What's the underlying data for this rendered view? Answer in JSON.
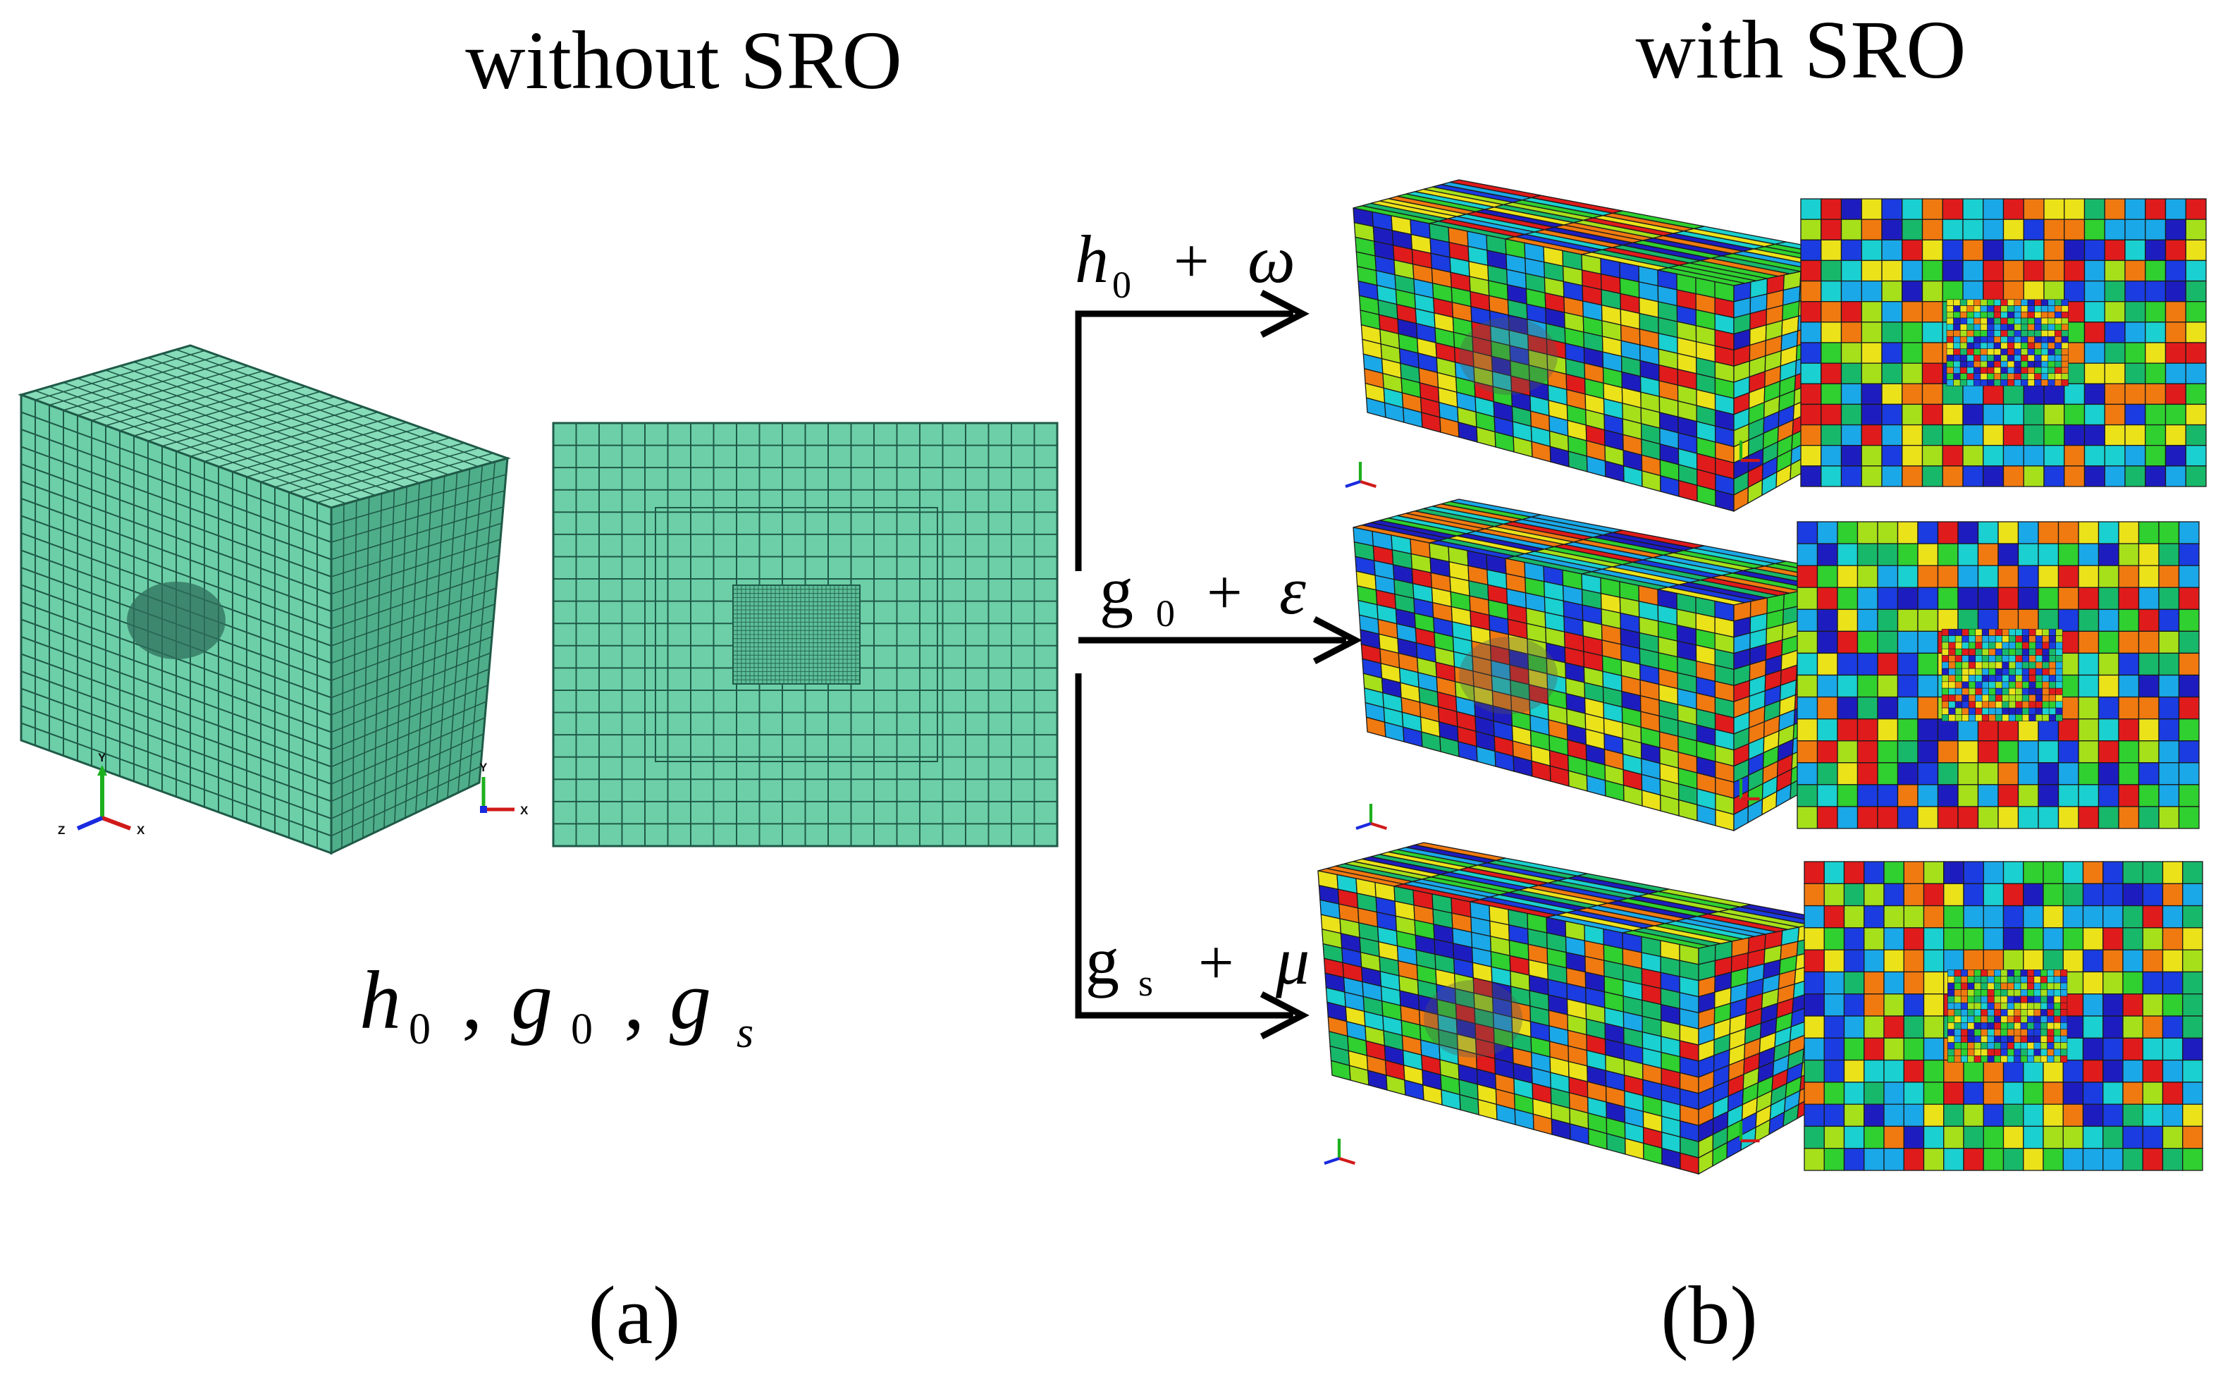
{
  "headings": {
    "left": "without SRO",
    "right": "with SRO"
  },
  "parameters_label": {
    "h": "h",
    "h_sub": "0",
    "g0": "g",
    "g0_sub": "0",
    "gs": "g",
    "gs_sub": "s",
    "separator": ","
  },
  "arrows": [
    {
      "base": "h",
      "sub": "0",
      "plus": "+",
      "term": "ω"
    },
    {
      "base": "g",
      "sub": "0",
      "plus": "+",
      "term": "ε"
    },
    {
      "base": "g",
      "sub": "s",
      "plus": "+",
      "term": "μ"
    }
  ],
  "panel_labels": {
    "a": "(a)",
    "b": "(b)"
  },
  "axis_triad": {
    "x": "X",
    "y": "Y",
    "z": "Z"
  },
  "colors": {
    "mesh_fill": "#6ccfa8",
    "mesh_fill_side": "#4fae8a",
    "mesh_fill_top": "#86dcb9",
    "mesh_line": "#1f5a48",
    "random_palette": [
      "#e01b1b",
      "#f07a10",
      "#ebe21a",
      "#a6e01a",
      "#2fd02f",
      "#18b86a",
      "#1ad0d0",
      "#1aa8e8",
      "#1a3ce0",
      "#1d1dbf"
    ]
  }
}
